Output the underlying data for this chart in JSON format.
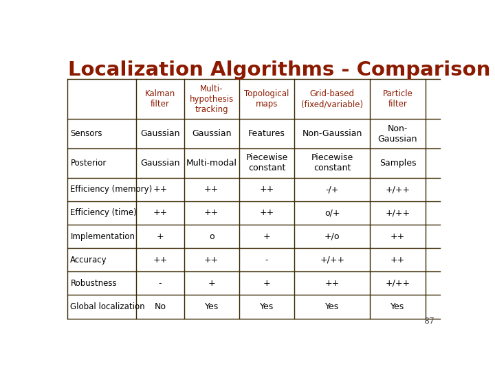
{
  "title": "Localization Algorithms - Comparison",
  "title_color": "#8B1A00",
  "title_fontsize": 21,
  "page_number": "87",
  "background_color": "#FFFFFF",
  "table_border_color": "#3A2800",
  "header_text_color": "#8B1A00",
  "body_text_color": "#000000",
  "col_headers": [
    "Kalman\nfilter",
    "Multi-\nhypothesis\ntracking",
    "Topological\nmaps",
    "Grid-based\n(fixed/variable)",
    "Particle\nfilter"
  ],
  "row_labels": [
    "Sensors",
    "Posterior",
    "Efficiency (memory)",
    "Efficiency (time)",
    "Implementation",
    "Accuracy",
    "Robustness",
    "Global localization"
  ],
  "table_data": [
    [
      "Gaussian",
      "Gaussian",
      "Features",
      "Non-Gaussian",
      "Non-\nGaussian"
    ],
    [
      "Gaussian",
      "Multi-modal",
      "Piecewise\nconstant",
      "Piecewise\nconstant",
      "Samples"
    ],
    [
      "++",
      "++",
      "++",
      "-/+",
      "+/++"
    ],
    [
      "++",
      "++",
      "++",
      "o/+",
      "+/++"
    ],
    [
      "+",
      "o",
      "+",
      "+/o",
      "++"
    ],
    [
      "++",
      "++",
      "-",
      "+/++",
      "++"
    ],
    [
      "-",
      "+",
      "+",
      "++",
      "+/++"
    ],
    [
      "No",
      "Yes",
      "Yes",
      "Yes",
      "Yes"
    ]
  ],
  "font_family": "DejaVu Sans",
  "header_font_size": 8.5,
  "body_font_size": 9.0,
  "row_label_font_size": 8.5
}
